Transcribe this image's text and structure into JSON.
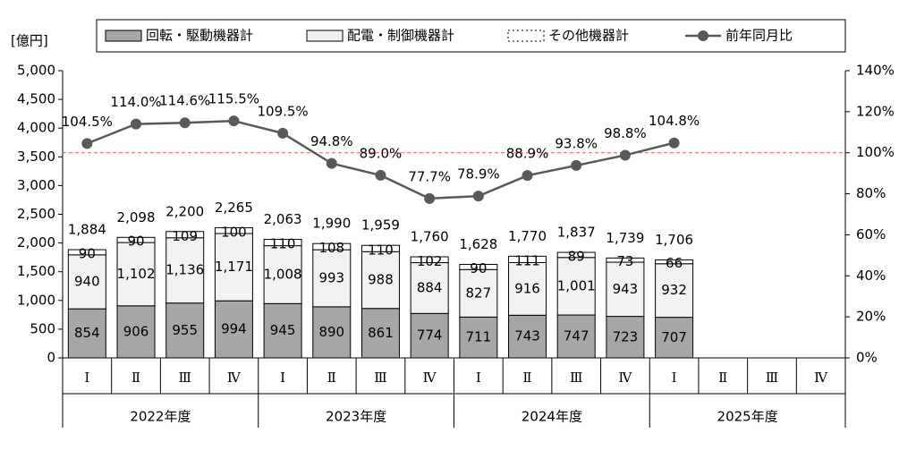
{
  "chart_data": {
    "type": "bar",
    "stacked": true,
    "y_label": "[億円]",
    "categories": [
      "Ⅰ",
      "Ⅱ",
      "Ⅲ",
      "Ⅳ",
      "Ⅰ",
      "Ⅱ",
      "Ⅲ",
      "Ⅳ",
      "Ⅰ",
      "Ⅱ",
      "Ⅲ",
      "Ⅳ",
      "Ⅰ",
      "Ⅱ",
      "Ⅲ",
      "Ⅳ"
    ],
    "groups": [
      "2022年度",
      "2023年度",
      "2024年度",
      "2025年度"
    ],
    "series": [
      {
        "name": "回転・駆動機器計",
        "type": "bar",
        "color": "#a6a6a6",
        "values": [
          854,
          906,
          955,
          994,
          945,
          890,
          861,
          774,
          711,
          743,
          747,
          723,
          707,
          null,
          null,
          null
        ]
      },
      {
        "name": "配電・制御機器計",
        "type": "bar",
        "color": "#f2f2f2",
        "values": [
          940,
          1102,
          1136,
          1171,
          1008,
          993,
          988,
          884,
          827,
          916,
          1001,
          943,
          932,
          null,
          null,
          null
        ],
        "value_labels": [
          "940",
          "1,102",
          "1,136",
          "1,171",
          "1,008",
          "993",
          "988",
          "884",
          "827",
          "916",
          "1,001",
          "943",
          "932",
          null,
          null,
          null
        ]
      },
      {
        "name": "その他機器計",
        "type": "bar",
        "color": "#ffffff",
        "values": [
          90,
          90,
          109,
          100,
          110,
          108,
          110,
          102,
          90,
          111,
          89,
          73,
          66,
          null,
          null,
          null
        ]
      },
      {
        "name": "前年同月比",
        "type": "line",
        "axis": "y2",
        "color": "#595959",
        "values": [
          104.5,
          114.0,
          114.6,
          115.5,
          109.5,
          94.8,
          89.0,
          77.7,
          78.9,
          88.9,
          93.8,
          98.8,
          104.8,
          null,
          null,
          null
        ],
        "value_labels": [
          "104.5%",
          "114.0%",
          "114.6%",
          "115.5%",
          "109.5%",
          "94.8%",
          "89.0%",
          "77.7%",
          "78.9%",
          "88.9%",
          "93.8%",
          "98.8%",
          "104.8%",
          null,
          null,
          null
        ]
      }
    ],
    "totals": [
      1884,
      2098,
      2200,
      2265,
      2063,
      1990,
      1959,
      1760,
      1628,
      1770,
      1837,
      1739,
      1706,
      null,
      null,
      null
    ],
    "total_labels": [
      "1,884",
      "2,098",
      "2,200",
      "2,265",
      "2,063",
      "1,990",
      "1,959",
      "1,760",
      "1,628",
      "1,770",
      "1,837",
      "1,739",
      "1,706",
      null,
      null,
      null
    ],
    "ylim": [
      0,
      5000
    ],
    "yticks": [
      0,
      500,
      {
        "value": 1000,
        "label": "1,000"
      },
      {
        "value": 1500,
        "label": "1,500"
      },
      {
        "value": 2000,
        "label": "2,000"
      },
      {
        "value": 2500,
        "label": "2,500"
      },
      {
        "value": 3000,
        "label": "3,000"
      },
      {
        "value": 3500,
        "label": "3,500"
      },
      {
        "value": 4000,
        "label": "4,000"
      },
      {
        "value": 4500,
        "label": "4,500"
      },
      {
        "value": 5000,
        "label": "5,000"
      }
    ],
    "y2lim": [
      0,
      140
    ],
    "y2ticks": [
      {
        "value": 0,
        "label": "0%"
      },
      {
        "value": 20,
        "label": "20%"
      },
      {
        "value": 40,
        "label": "40%"
      },
      {
        "value": 60,
        "label": "60%"
      },
      {
        "value": 80,
        "label": "80%"
      },
      {
        "value": 100,
        "label": "100%"
      },
      {
        "value": 120,
        "label": "120%"
      },
      {
        "value": 140,
        "label": "140%"
      }
    ],
    "reference_line": {
      "axis": "y2",
      "value": 100,
      "color": "#e06050"
    },
    "legend": "top"
  }
}
